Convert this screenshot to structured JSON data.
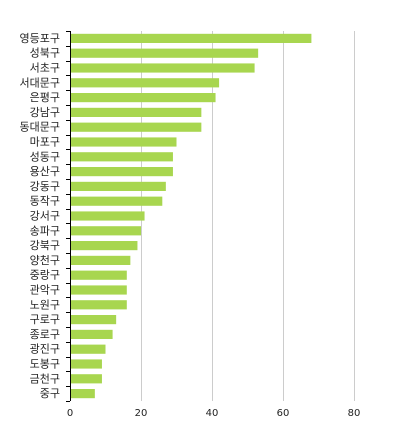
{
  "chart_data": {
    "type": "bar",
    "orientation": "horizontal",
    "title": "",
    "xlabel": "",
    "ylabel": "",
    "categories": [
      "영등포구",
      "성북구",
      "서초구",
      "서대문구",
      "은평구",
      "강남구",
      "동대문구",
      "마포구",
      "성동구",
      "용산구",
      "강동구",
      "동작구",
      "강서구",
      "송파구",
      "강북구",
      "양천구",
      "중랑구",
      "관악구",
      "노원구",
      "구로구",
      "종로구",
      "광진구",
      "도봉구",
      "금천구",
      "중구"
    ],
    "values": [
      68,
      53,
      52,
      42,
      41,
      37,
      37,
      30,
      29,
      29,
      27,
      26,
      21,
      20,
      19,
      17,
      16,
      16,
      16,
      13,
      12,
      10,
      9,
      9,
      7
    ],
    "xlim": [
      0,
      80
    ],
    "xticks": [
      0,
      20,
      40,
      60,
      80
    ],
    "grid": true,
    "bar_color": "#a8d64f",
    "grid_color": "#cccccc",
    "axis_color": "#000000"
  }
}
